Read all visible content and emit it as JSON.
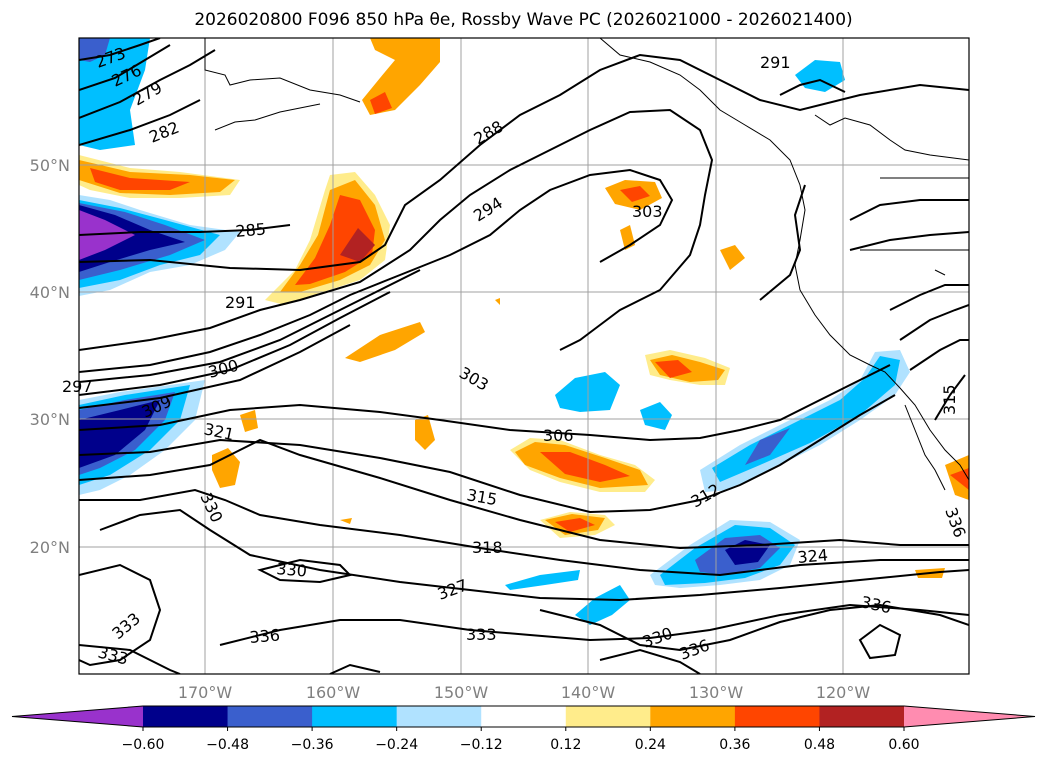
{
  "title_text": "2026020800 F096 850 hPa θe, Rossby Wave PC (2026021000 - 2026021400)",
  "axes": {
    "lat_labels": [
      "50°N",
      "40°N",
      "30°N",
      "20°N"
    ],
    "lon_labels": [
      "170°W",
      "160°W",
      "150°W",
      "140°W",
      "130°W",
      "120°W"
    ]
  },
  "contour_labels": [
    "273",
    "276",
    "279",
    "282",
    "285",
    "288",
    "291",
    "291",
    "294",
    "297",
    "300",
    "303",
    "303",
    "306",
    "309",
    "312",
    "315",
    "315",
    "318",
    "321",
    "324",
    "327",
    "330",
    "330",
    "330",
    "333",
    "333",
    "333",
    "336",
    "336",
    "336",
    "336"
  ],
  "colorbar": {
    "ticks": [
      "−0.60",
      "−0.48",
      "−0.36",
      "−0.24",
      "−0.12",
      "0.12",
      "0.24",
      "0.36",
      "0.48",
      "0.60"
    ],
    "colors": [
      "#9932cc",
      "#00008b",
      "#3a5fcd",
      "#00bfff",
      "#b0e2ff",
      "#ffffff",
      "#ffec8b",
      "#ffa500",
      "#ff4500",
      "#b22222",
      "#ff8cb0"
    ]
  }
}
